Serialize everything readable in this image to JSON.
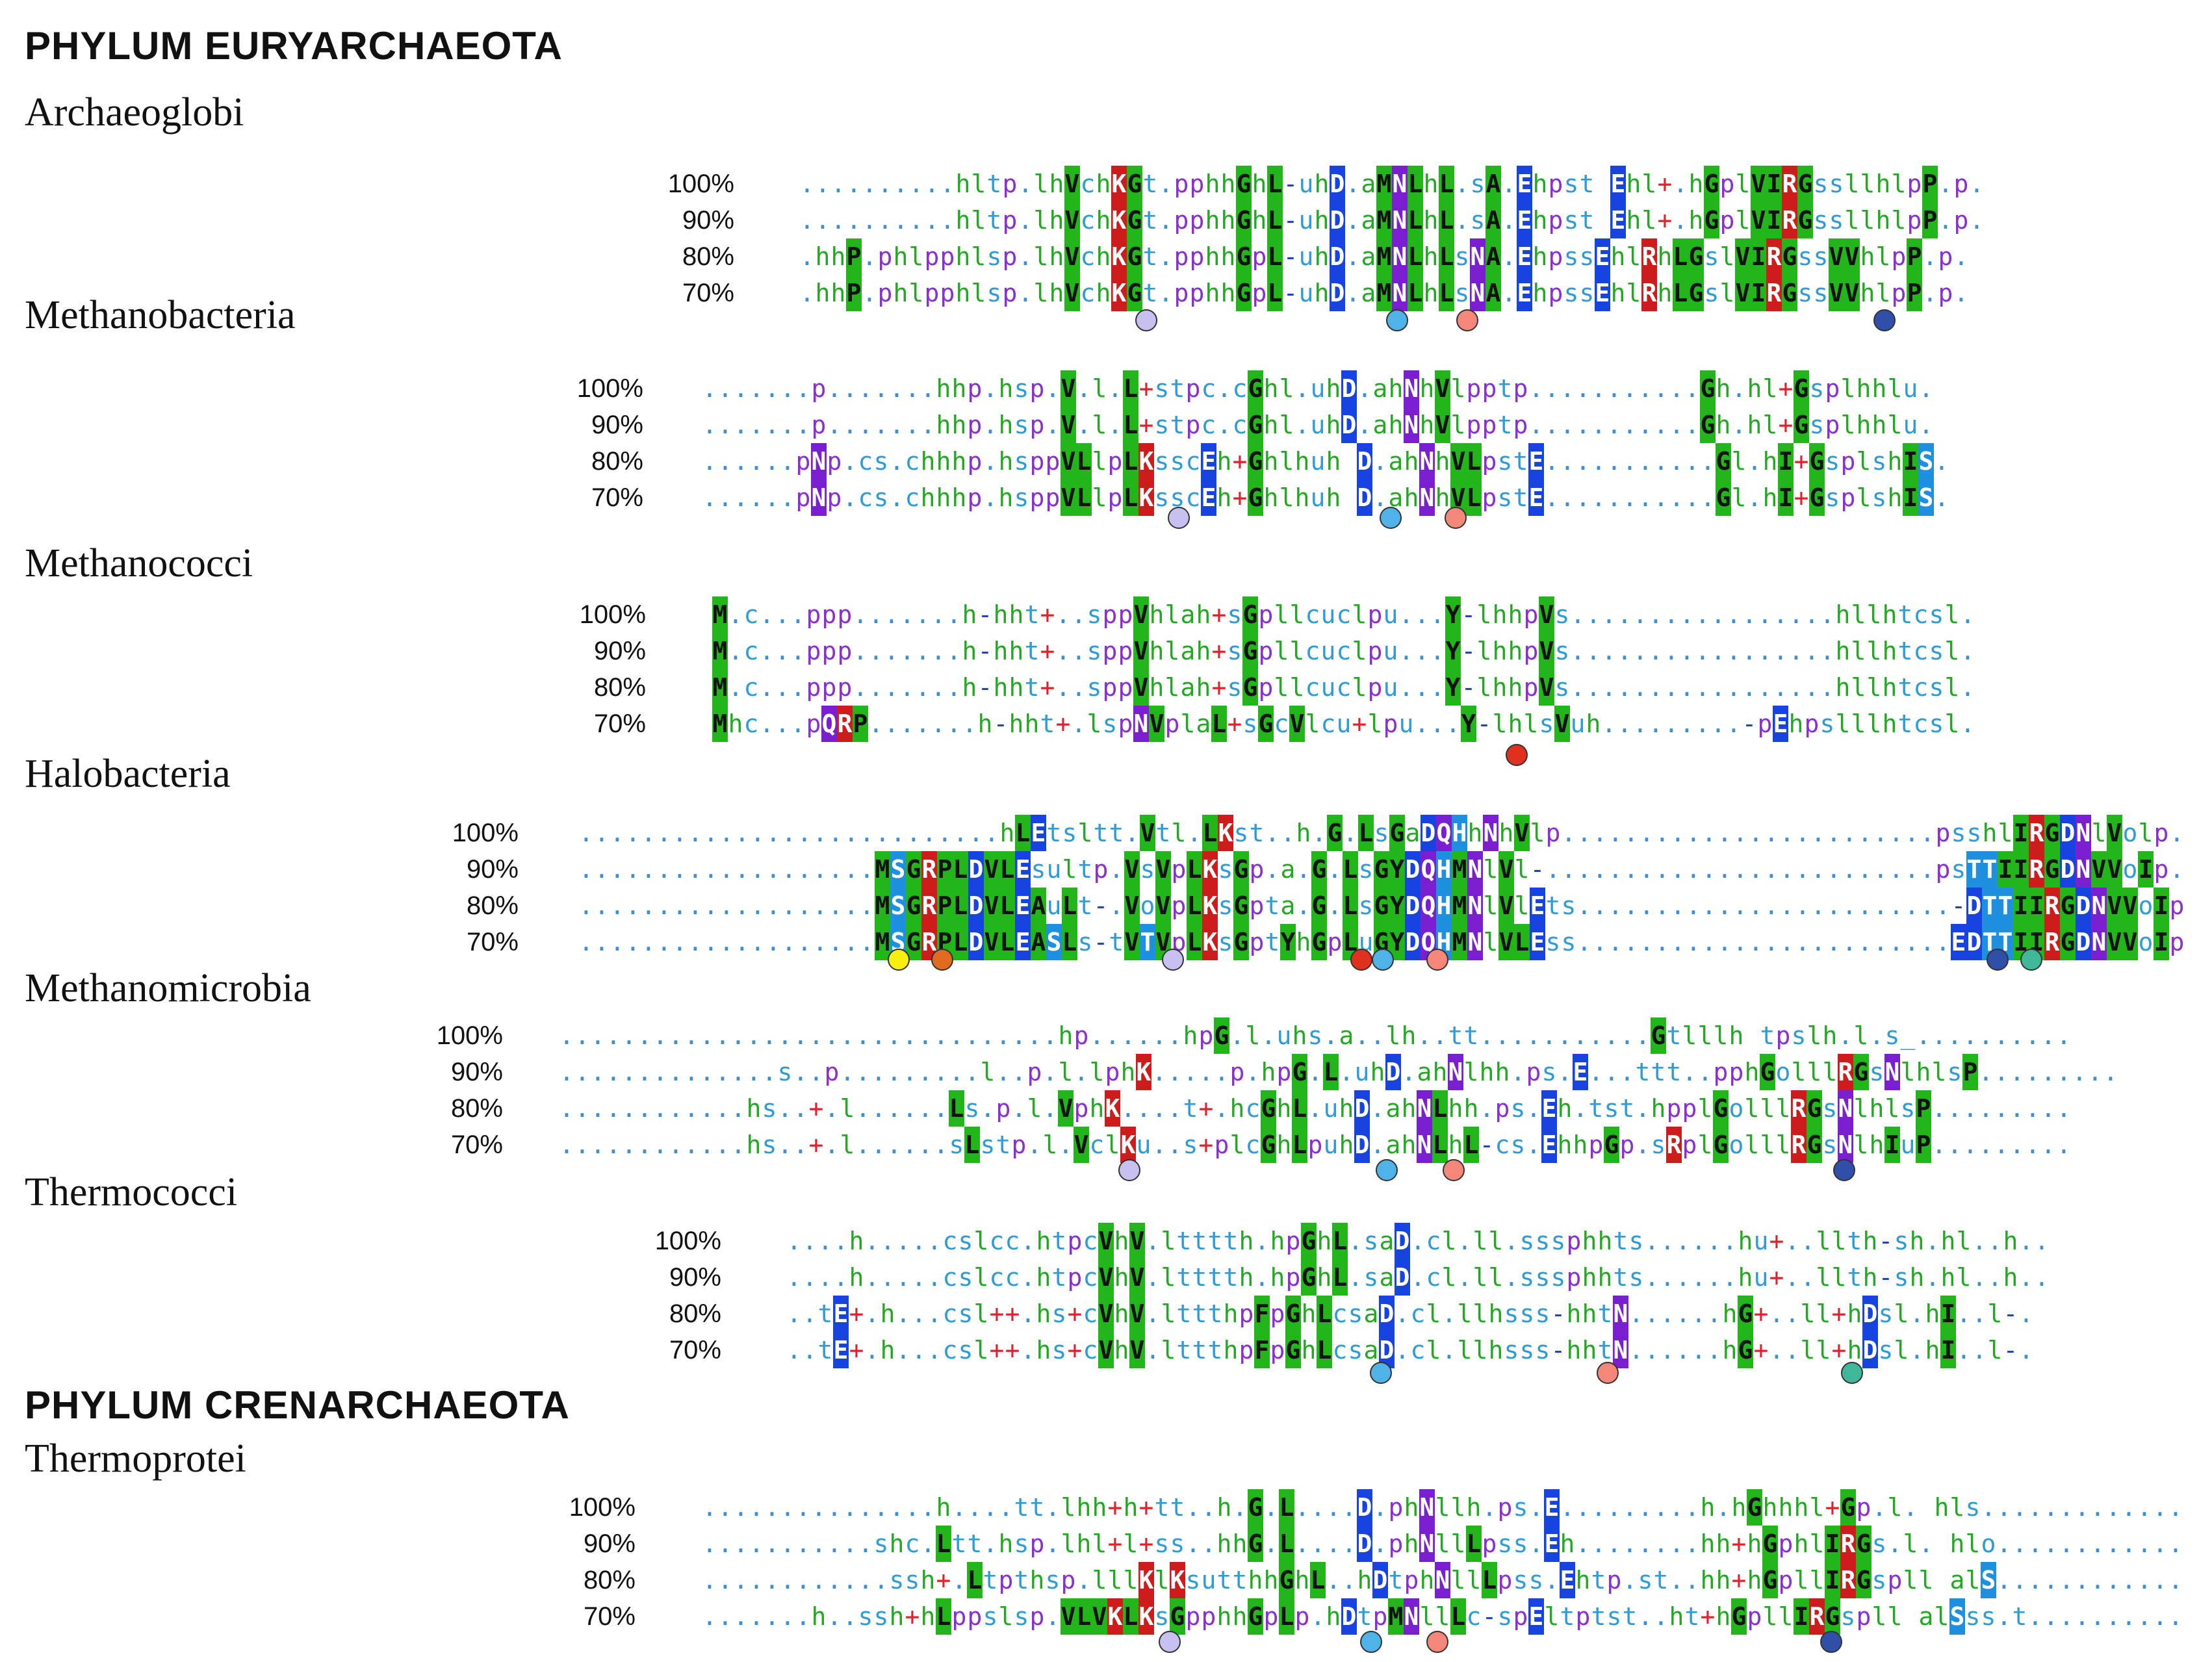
{
  "colors": {
    "dot": "#3b8fd6",
    "hydrophobic": "#22a822",
    "polar": "#2f9cd6",
    "amide": "#8a2fd0",
    "positive": "#e0202a",
    "negative": "#1e3ee0",
    "bg_green": "#22b61a",
    "bg_blue": "#1744e0",
    "bg_purple": "#7a1fd0",
    "bg_red": "#cc1c1c",
    "bg_cyan": "#1f90e0",
    "marker_lavender": "#c8c0ee",
    "marker_sky": "#4fb3e8",
    "marker_salmon": "#f4877a",
    "marker_navy": "#2f4fa8",
    "marker_red": "#e0301e",
    "marker_yellow": "#f8ee10",
    "marker_orange": "#e06a20",
    "marker_teal": "#3fb89a"
  },
  "headings": {
    "phylum1": "PHYLUM EURYARCHAEOTA",
    "phylum2": "PHYLUM CRENARCHAEOTA"
  },
  "groups": [
    {
      "name": "Archaeoglobi",
      "rows": [
        {
          "pct": "100%",
          "seq": "..........hltp.lhVchKGt.pphhGhL-uhD.aMNLhL.sA.Ehpst Ehl+.hGplVIRGssllhlpP.p."
        },
        {
          "pct": "90%",
          "seq": "..........hltp.lhVchKGt.pphhGhL-uhD.aMNLhL.sA.Ehpst Ehl+.hGplVIRGssllhlpP.p."
        },
        {
          "pct": "80%",
          "seq": ".hhP.phlpphlsp.lhVchKGt.pphhGpL-uhD.aMNLhLsNA.EhpssEhlRhLGslVIRGssVVhlpP.p."
        },
        {
          "pct": "70%",
          "seq": ".hhP.phlpphlsp.lhVchKGt.pphhGpL-uhD.aMNLhLsNA.EhpssEhlRhLGslVIRGssVVhlpP.p."
        }
      ],
      "markers": [
        "marker_lavender",
        "marker_sky",
        "marker_salmon",
        "marker_navy"
      ]
    },
    {
      "name": "Methanobacteria",
      "rows": [
        {
          "pct": "100%",
          "seq": ".......p.......hhp.hsp.V.l.L+stpc.cGhl.uhD.ahNhVlpptp...........Gh.hl+Gsplhhlu."
        },
        {
          "pct": "90%",
          "seq": ".......p.......hhp.hsp.V.l.L+stpc.cGhl.uhD.ahNhVlpptp...........Gh.hl+Gsplhhlu."
        },
        {
          "pct": "80%",
          "seq": "......pNp.cs.chhhp.hsppVLlpLKsscEh+Ghlhuh D.ahNhVLpstE...........Gl.hI+GsplshIS."
        },
        {
          "pct": "70%",
          "seq": "......pNp.cs.chhhp.hsppVLlpLKsscEh+Ghlhuh D.ahNhVLpstE...........Gl.hI+GsplshIS."
        }
      ],
      "markers": [
        "marker_lavender",
        "marker_sky",
        "marker_salmon"
      ]
    },
    {
      "name": "Methanococci",
      "rows": [
        {
          "pct": "100%",
          "seq": "M.c...ppp.......h-hht+..sppVhlah+sGpllcuclpu...Y-lhhpVs.................hllhtcsl."
        },
        {
          "pct": "90%",
          "seq": "M.c...ppp.......h-hht+..sppVhlah+sGpllcuclpu...Y-lhhpVs.................hllhtcsl."
        },
        {
          "pct": "80%",
          "seq": "M.c...ppp.......h-hht+..sppVhlah+sGpllcuclpu...Y-lhhpVs.................hllhtcsl."
        },
        {
          "pct": "70%",
          "seq": "Mhc...pQRP.......h-hht+.lspNVplaL+sGcVlcu+lpu...Y-lhlsVuh.........-pEhpslllhtcsl."
        }
      ],
      "markers": [
        "marker_red"
      ]
    },
    {
      "name": "Halobacteria",
      "rows": [
        {
          "pct": "100%",
          "seq": "...........................hLEtsltt.Vtl.LKst..h.G.LsGaDQHhNhVlp........................psshlIRGDNlVolp."
        },
        {
          "pct": "90%",
          "seq": "...................MSGRPLDVLEsultp.VsVpLKsGp.a.G.LsGYDQHMNlVl-.........................psTTIIRGDNVVoIp."
        },
        {
          "pct": "80%",
          "seq": "...................MSGRPLDVLEAuLt-.VoVpLKsGpta.G.LsGYDQHMNlVlEts........................-DTTIIRGDNVVoIps"
        },
        {
          "pct": "70%",
          "seq": "...................MSGRPLDVLEASLs-tVTVpLKsGptYhGpLuGYDQHMNlVLEss........................EDTTIIRGDNVVoIps"
        }
      ],
      "markers": [
        "marker_yellow",
        "marker_orange",
        "marker_lavender",
        "marker_red",
        "marker_sky",
        "marker_salmon",
        "marker_navy",
        "marker_teal"
      ]
    },
    {
      "name": "Methanomicrobia",
      "rows": [
        {
          "pct": "100%",
          "seq": "................................hp......hpG.l.uhs.a..lh..tt...........Gtlllh tpslh.l.s_.........."
        },
        {
          "pct": "90%",
          "seq": "..............s..p.........l..p.l.lphK.....p.hpG.L.uhD.ahNlhh.ps.E...ttt..pphGolllRGsNlhlsP........."
        },
        {
          "pct": "80%",
          "seq": "............hs..+.l......Ls.p.l.VphK....t+.hcGhL.uhD.ahNLhh.ps.Eh.tst.hpplGolllRGsNlhlsP........."
        },
        {
          "pct": "70%",
          "seq": "............hs..+.l......sLstp.l.VclKu..s+plcGhLpuhD.ahNLhL-cs.EhhpGp.sRplGolllRGsNlhIuP........."
        }
      ],
      "markers": [
        "marker_lavender",
        "marker_sky",
        "marker_salmon",
        "marker_navy"
      ]
    },
    {
      "name": "Thermococci",
      "rows": [
        {
          "pct": "100%",
          "seq": "....h.....cslcc.htpcVhV.ltttth.hpGhL.saD.cl.ll.sssphhts......hu+..llth-sh.hl..h.."
        },
        {
          "pct": "90%",
          "seq": "....h.....cslcc.htpcVhV.ltttth.hpGhL.saD.cl.ll.sssphhts......hu+..llth-sh.hl..h.."
        },
        {
          "pct": "80%",
          "seq": "..tE+.h...csl++.hs+cVhV.lttthpFpGhLcsaD.cl.llhsss-hhtN......hG+..ll+hDsl.hI..l-."
        },
        {
          "pct": "70%",
          "seq": "..tE+.h...csl++.hs+cVhV.lttthpFpGhLcsaD.cl.llhsss-hhtN......hG+..ll+hDsl.hI..l-."
        }
      ],
      "markers": [
        "marker_sky",
        "marker_salmon",
        "marker_teal"
      ]
    },
    {
      "name": "Thermoprotei",
      "rows": [
        {
          "pct": "100%",
          "seq": "...............h....tt.lhh+h+tt..h.G.L....D.phNllh.ps.E.........h.hGhhhl+Gp.l. hls..............."
        },
        {
          "pct": "90%",
          "seq": "...........shc.Ltt.hsp.lhl+l+ss..hhG.L....D.phNllLpss.Eh........hh+hGphlIRGs.l. hlo..............."
        },
        {
          "pct": "80%",
          "seq": "............ssh+.Ltpthsp.lllKlKsutthhGhL..hDtphNllLpss.Ehtp.st..hh+hGpllIRGspll alS..............."
        },
        {
          "pct": "70%",
          "seq": ".......h..ssh+hLppslsp.VLVKLKsGpphhGpLp.hDtpMNllLc-spEltptst..ht+hGpllIRGspll alSss.t..........."
        }
      ],
      "markers": [
        "marker_lavender",
        "marker_sky",
        "marker_salmon",
        "marker_navy"
      ]
    }
  ]
}
